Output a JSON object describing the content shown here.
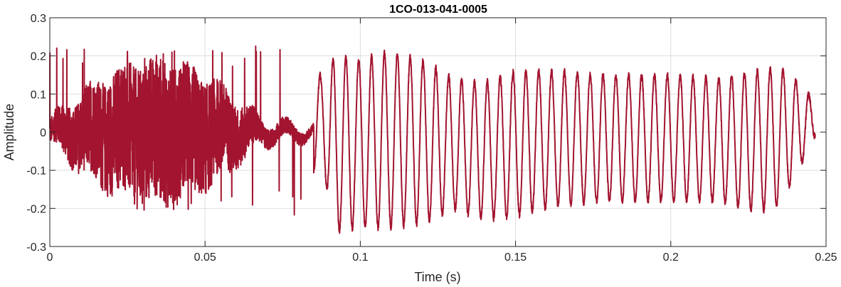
{
  "chart_data": {
    "type": "line",
    "title": "1CO-013-041-0005",
    "xlabel": "Time (s)",
    "ylabel": "Amplitude",
    "xlim": [
      0,
      0.25
    ],
    "ylim": [
      -0.3,
      0.3
    ],
    "grid": true,
    "x_ticks": [
      {
        "value": 0,
        "label": "0"
      },
      {
        "value": 0.05,
        "label": "0.05"
      },
      {
        "value": 0.1,
        "label": "0.1"
      },
      {
        "value": 0.15,
        "label": "0.15"
      },
      {
        "value": 0.2,
        "label": "0.2"
      },
      {
        "value": 0.25,
        "label": "0.25"
      }
    ],
    "y_ticks": [
      {
        "value": 0.3,
        "label": "0.3"
      },
      {
        "value": 0.2,
        "label": "0.2"
      },
      {
        "value": 0.1,
        "label": "0.1"
      },
      {
        "value": 0,
        "label": "0"
      },
      {
        "value": -0.1,
        "label": "-0.1"
      },
      {
        "value": -0.2,
        "label": "-0.2"
      },
      {
        "value": -0.3,
        "label": "-0.3"
      }
    ],
    "line_color": "#A2142F",
    "series": [
      {
        "x_start": 0,
        "x_end": 0.2465,
        "noise_segment": {
          "x_start": 0.0,
          "x_end": 0.085,
          "approx_peak_max": 0.23,
          "approx_peak_min": -0.22
        },
        "periodic_segment": {
          "x_start": 0.085,
          "x_end": 0.2465,
          "cycles": 39,
          "approx_max": 0.21,
          "approx_min": -0.27
        },
        "envelope_points": [
          {
            "x": 0.088,
            "upper": 0.15,
            "lower": -0.1
          },
          {
            "x": 0.092,
            "upper": 0.2,
            "lower": -0.26
          },
          {
            "x": 0.1,
            "upper": 0.19,
            "lower": -0.25
          },
          {
            "x": 0.109,
            "upper": 0.21,
            "lower": -0.25
          },
          {
            "x": 0.12,
            "upper": 0.19,
            "lower": -0.24
          },
          {
            "x": 0.13,
            "upper": 0.14,
            "lower": -0.2
          },
          {
            "x": 0.14,
            "upper": 0.13,
            "lower": -0.23
          },
          {
            "x": 0.15,
            "upper": 0.16,
            "lower": -0.22
          },
          {
            "x": 0.165,
            "upper": 0.16,
            "lower": -0.19
          },
          {
            "x": 0.18,
            "upper": 0.15,
            "lower": -0.18
          },
          {
            "x": 0.2,
            "upper": 0.15,
            "lower": -0.18
          },
          {
            "x": 0.215,
            "upper": 0.14,
            "lower": -0.18
          },
          {
            "x": 0.228,
            "upper": 0.16,
            "lower": -0.21
          },
          {
            "x": 0.235,
            "upper": 0.17,
            "lower": -0.19
          },
          {
            "x": 0.241,
            "upper": 0.13,
            "lower": -0.1
          },
          {
            "x": 0.2465,
            "upper": 0.08,
            "lower": -0.01
          }
        ]
      }
    ]
  }
}
